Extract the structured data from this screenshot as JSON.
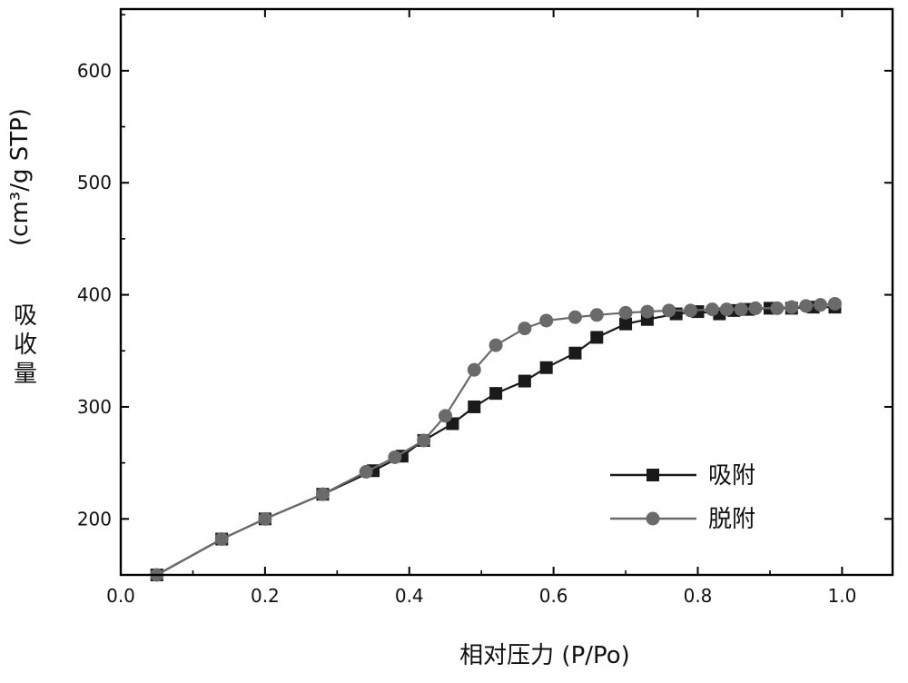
{
  "chart_data": {
    "type": "line",
    "xlabel": "相对压力 (P/Po)",
    "ylabel_lines": [
      "吸",
      "收",
      "量"
    ],
    "ylabel_unit": "(cm³/g STP)",
    "xlim": [
      0.0,
      1.07
    ],
    "ylim": [
      150,
      655
    ],
    "x_ticks": [
      "0.0",
      "0.2",
      "0.4",
      "0.6",
      "0.8",
      "1.0"
    ],
    "y_ticks": [
      "200",
      "300",
      "400",
      "500",
      "600"
    ],
    "legend_position": "lower-right",
    "series": [
      {
        "name": "吸附",
        "marker": "square",
        "color": "#1a1a1a",
        "points": [
          [
            0.05,
            150
          ],
          [
            0.14,
            182
          ],
          [
            0.2,
            200
          ],
          [
            0.28,
            222
          ],
          [
            0.35,
            243
          ],
          [
            0.39,
            256
          ],
          [
            0.42,
            270
          ],
          [
            0.46,
            285
          ],
          [
            0.49,
            300
          ],
          [
            0.52,
            312
          ],
          [
            0.56,
            323
          ],
          [
            0.59,
            335
          ],
          [
            0.63,
            348
          ],
          [
            0.66,
            362
          ],
          [
            0.7,
            374
          ],
          [
            0.73,
            378
          ],
          [
            0.77,
            383
          ],
          [
            0.8,
            385
          ],
          [
            0.83,
            383
          ],
          [
            0.85,
            386
          ],
          [
            0.87,
            387
          ],
          [
            0.9,
            388
          ],
          [
            0.93,
            388
          ],
          [
            0.96,
            389
          ],
          [
            0.99,
            389
          ]
        ]
      },
      {
        "name": "脱附",
        "marker": "circle",
        "color": "#6a6a6a",
        "points": [
          [
            0.05,
            150
          ],
          [
            0.14,
            182
          ],
          [
            0.2,
            200
          ],
          [
            0.28,
            222
          ],
          [
            0.34,
            242
          ],
          [
            0.38,
            255
          ],
          [
            0.42,
            270
          ],
          [
            0.45,
            292
          ],
          [
            0.49,
            333
          ],
          [
            0.52,
            355
          ],
          [
            0.56,
            370
          ],
          [
            0.59,
            377
          ],
          [
            0.63,
            380
          ],
          [
            0.66,
            382
          ],
          [
            0.7,
            384
          ],
          [
            0.73,
            385
          ],
          [
            0.76,
            386
          ],
          [
            0.79,
            386
          ],
          [
            0.82,
            387
          ],
          [
            0.84,
            387
          ],
          [
            0.86,
            387
          ],
          [
            0.88,
            388
          ],
          [
            0.91,
            388
          ],
          [
            0.93,
            389
          ],
          [
            0.95,
            390
          ],
          [
            0.97,
            391
          ],
          [
            0.99,
            392
          ]
        ]
      }
    ]
  }
}
